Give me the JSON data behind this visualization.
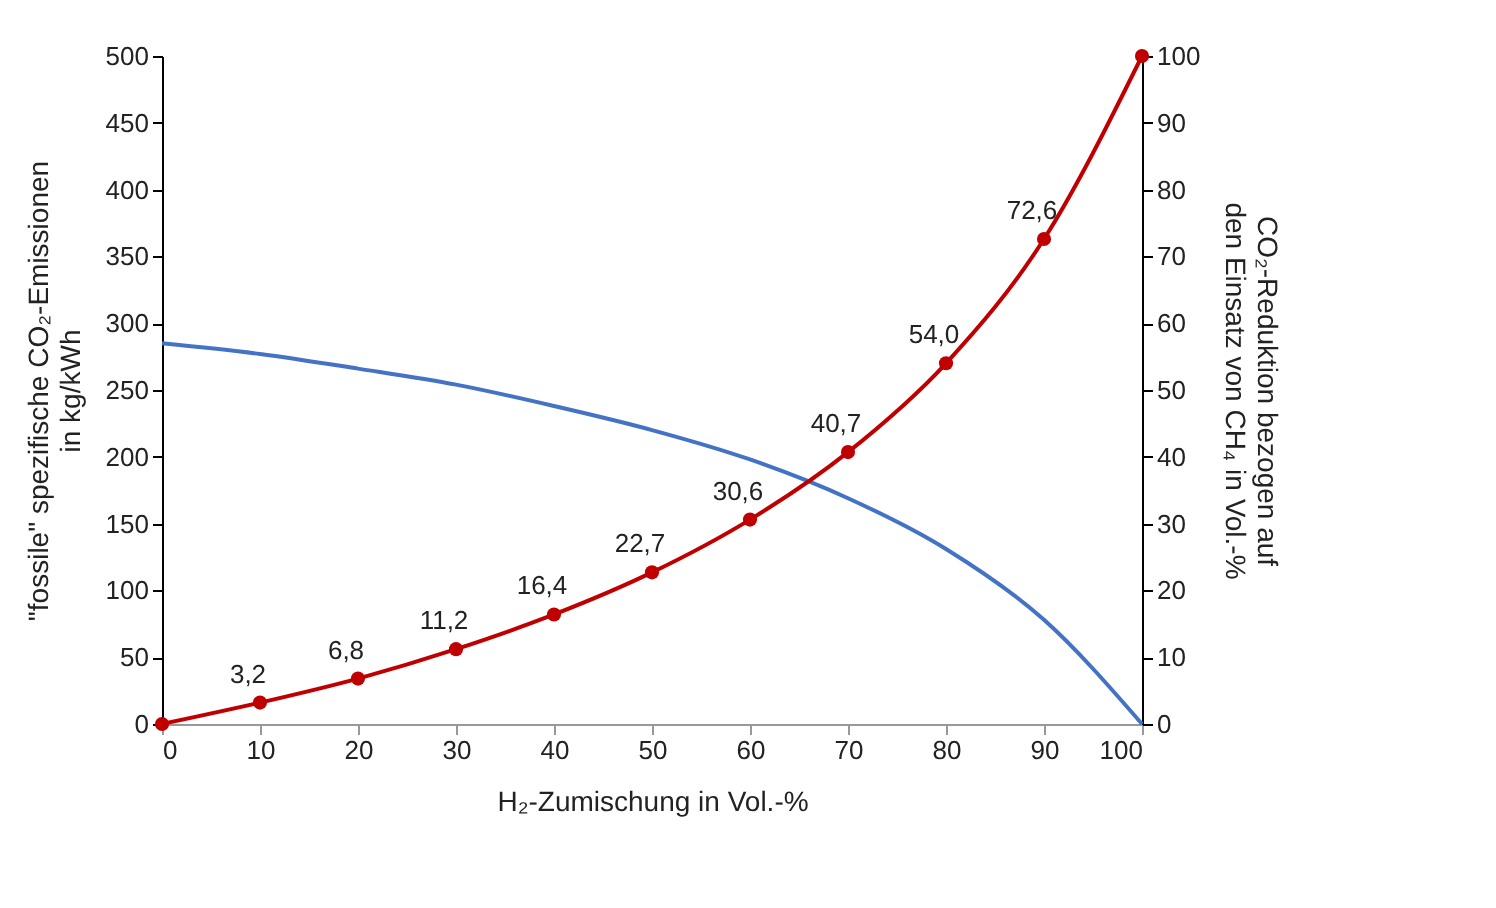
{
  "chart_data": {
    "type": "line",
    "xlabel": "H₂-Zumischung in Vol.-%",
    "ylabel": "\"fossile\" spezifische CO₂-Emissionen\nin kg/kWh",
    "y2label": "CO₂-Reduktion bezogen auf\nden Einsatz von CH₄ in Vol.-%",
    "x": [
      0,
      10,
      20,
      30,
      40,
      50,
      60,
      70,
      80,
      90,
      100
    ],
    "xlim": [
      0,
      100
    ],
    "xticks": [
      0,
      10,
      20,
      30,
      40,
      50,
      60,
      70,
      80,
      90,
      100
    ],
    "ylim": [
      0,
      500
    ],
    "yticks": [
      0,
      50,
      100,
      150,
      200,
      250,
      300,
      350,
      400,
      450,
      500
    ],
    "y2lim": [
      0,
      100
    ],
    "y2ticks": [
      0,
      10,
      20,
      30,
      40,
      50,
      60,
      70,
      80,
      90,
      100
    ],
    "grid": false,
    "series": [
      {
        "color": "#4472c4",
        "marker": "none",
        "values": [
          285,
          277,
          266,
          254,
          238,
          220,
          198,
          169,
          131,
          78,
          0
        ]
      },
      {
        "color": "#c00000",
        "axis": "y2",
        "marker": "circle",
        "values": [
          0,
          3.2,
          6.8,
          11.2,
          16.4,
          22.7,
          30.6,
          40.7,
          54.0,
          72.6,
          100
        ],
        "value_labels": [
          null,
          "3,2",
          "6,8",
          "11,2",
          "16,4",
          "22,7",
          "30,6",
          "40,7",
          "54,0",
          "72,6",
          null
        ]
      }
    ]
  }
}
